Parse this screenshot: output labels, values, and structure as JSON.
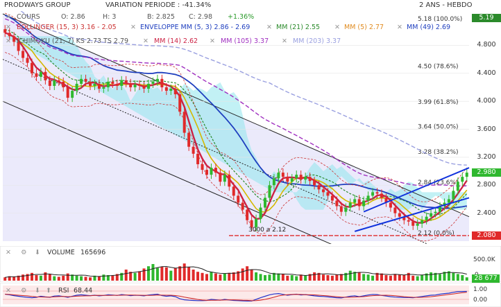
{
  "header": {
    "name": "PRODWAYS GROUP",
    "variation_label": "VARIATION PERIODE : -41.34%",
    "period": "2 ANS - HEBDO"
  },
  "quote": {
    "cours_label": "COURS",
    "open": "O: 2.86",
    "high": "H: 3",
    "low": "B: 2.825",
    "close": "C: 2.98",
    "change": "+1.36%"
  },
  "indicators": {
    "bollinger": "BOLLINGER (15, 3) 3.16 - 2.05",
    "enveloppe": "ENVELOPPE MM (5, 3) 2.86 - 2.69",
    "mm21": "MM (21) 2.55",
    "mm5": "MM (5) 2.77",
    "mm49": "MM (49) 2.69",
    "ichimoku": "ICHIMOKU (21, 7) KS 2.73 TS 2.79",
    "mm14": "MM (14) 2.62",
    "mm105": "MM (105) 3.37",
    "mm203": "MM (203) 3.37"
  },
  "colors": {
    "bollinger": "#cc3333",
    "enveloppe": "#1f3fbf",
    "mm21": "#2a8a2a",
    "mm5": "#e08a1e",
    "mm49": "#1f3fbf",
    "ichimoku": "#555555",
    "ichimoku_ks": "#d4b800",
    "mm14": "#cc2244",
    "mm105": "#a030c0",
    "mm203": "#9aa0e0",
    "up": "#2fb82f",
    "down": "#e02a2a",
    "last_price": "#2fb82f",
    "support": "#e02a2a"
  },
  "price_axis": {
    "ticks": [
      "4.800",
      "4.400",
      "4.000",
      "3.600",
      "3.200",
      "2.800",
      "2.400"
    ],
    "last_price": "2.980",
    "top_label": "5.19",
    "support_label": "2.080"
  },
  "fibonacci": [
    {
      "label": "5.18 (100.0%)",
      "value": 5.18
    },
    {
      "label": "4.50 (78.6%)",
      "value": 4.5
    },
    {
      "label": "3.99 (61.8%)",
      "value": 3.99
    },
    {
      "label": "3.64 (50.0%)",
      "value": 3.64
    },
    {
      "label": "3.28 (38.2%)",
      "value": 3.28
    },
    {
      "label": "2.84 (23.6%)",
      "value": 2.84
    },
    {
      "label": "2.12 (0.0%)",
      "value": 2.12
    }
  ],
  "annotations": {
    "low_marker": "3000 a 2.12",
    "low_value": 2.12
  },
  "volume": {
    "label": "VOLUME",
    "value": "165696",
    "axis_max": "500.0K",
    "axis_zero": "0",
    "last": "28 677"
  },
  "rsi": {
    "label": "RSI",
    "value": "68.44",
    "axis_max": "1.00",
    "axis_zero": "0.00"
  },
  "chart_data": {
    "type": "candlestick",
    "title": "PRODWAYS GROUP",
    "ylim": [
      2.0,
      5.25
    ],
    "weeks": 104,
    "close": [
      4.98,
      4.93,
      4.85,
      4.72,
      4.62,
      4.55,
      4.4,
      4.35,
      4.42,
      4.3,
      4.22,
      4.3,
      4.28,
      4.2,
      4.05,
      4.15,
      4.25,
      4.32,
      4.28,
      4.22,
      4.25,
      4.18,
      4.2,
      4.28,
      4.25,
      4.22,
      4.3,
      4.26,
      4.2,
      4.24,
      4.22,
      4.18,
      4.25,
      4.28,
      4.32,
      4.2,
      4.15,
      4.18,
      4.1,
      3.85,
      3.55,
      3.35,
      3.25,
      3.1,
      3.02,
      2.95,
      3.05,
      2.98,
      2.85,
      2.95,
      2.78,
      2.65,
      2.55,
      2.45,
      2.3,
      2.2,
      2.32,
      2.48,
      2.62,
      2.8,
      2.9,
      2.98,
      2.92,
      2.85,
      2.9,
      2.95,
      2.88,
      2.92,
      2.86,
      2.8,
      2.74,
      2.7,
      2.65,
      2.58,
      2.5,
      2.42,
      2.48,
      2.55,
      2.6,
      2.5,
      2.58,
      2.65,
      2.7,
      2.68,
      2.62,
      2.55,
      2.48,
      2.4,
      2.35,
      2.3,
      2.28,
      2.22,
      2.25,
      2.3,
      2.35,
      2.4,
      2.42,
      2.5,
      2.55,
      2.6,
      2.72,
      2.85,
      2.92,
      2.98
    ],
    "volume": [
      60,
      80,
      70,
      90,
      110,
      120,
      140,
      100,
      90,
      150,
      120,
      80,
      70,
      90,
      130,
      110,
      90,
      80,
      70,
      60,
      90,
      80,
      110,
      100,
      90,
      120,
      140,
      200,
      160,
      140,
      170,
      220,
      260,
      300,
      230,
      250,
      240,
      180,
      230,
      260,
      310,
      250,
      200,
      160,
      140,
      120,
      160,
      130,
      110,
      130,
      140,
      150,
      170,
      220,
      260,
      200,
      150,
      120,
      100,
      110,
      140,
      130,
      120,
      90,
      100,
      80,
      110,
      90,
      120,
      150,
      140,
      110,
      100,
      90,
      110,
      120,
      140,
      180,
      160,
      150,
      120,
      110,
      90,
      140,
      130,
      100,
      90,
      120,
      110,
      100,
      140,
      90,
      80,
      100,
      130,
      150,
      140,
      120,
      160,
      170,
      140,
      120,
      100,
      60
    ],
    "rsi": [
      55,
      52,
      48,
      45,
      42,
      40,
      38,
      40,
      45,
      42,
      40,
      46,
      47,
      44,
      40,
      45,
      50,
      52,
      50,
      48,
      50,
      47,
      49,
      52,
      51,
      49,
      53,
      51,
      48,
      50,
      49,
      47,
      51,
      53,
      55,
      48,
      45,
      47,
      43,
      33,
      28,
      26,
      25,
      24,
      24,
      25,
      30,
      28,
      26,
      30,
      27,
      25,
      24,
      23,
      22,
      22,
      30,
      38,
      45,
      52,
      56,
      58,
      54,
      50,
      53,
      55,
      51,
      53,
      50,
      47,
      45,
      44,
      42,
      40,
      38,
      37,
      41,
      45,
      47,
      43,
      47,
      51,
      54,
      53,
      49,
      46,
      43,
      41,
      40,
      39,
      39,
      38,
      41,
      44,
      47,
      50,
      51,
      55,
      58,
      60,
      64,
      67,
      68,
      68.44
    ]
  }
}
